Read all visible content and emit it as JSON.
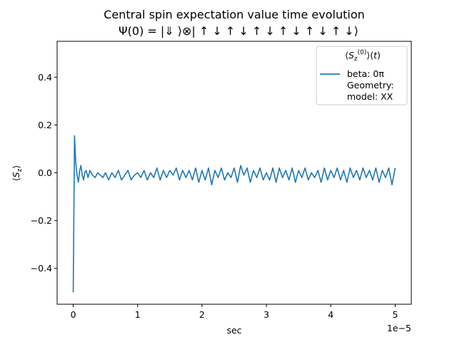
{
  "chart_data": {
    "type": "line",
    "title": "Central spin expectation value time evolution",
    "subtitle": "Ψ(0) = |⇓ ⟩⊗| ↑ ↓ ↑ ↓ ↑ ↓ ↑ ↓ ↑ ↓ ↑ ↓⟩",
    "xlabel": "sec",
    "ylabel": "⟨S_z⟩",
    "x_offset_text": "1e−5",
    "xlim": [
      -2.5e-06,
      5.25e-05
    ],
    "ylim": [
      -0.55,
      0.55
    ],
    "xticks": [
      0,
      1e-05,
      2e-05,
      3e-05,
      4e-05,
      5e-05
    ],
    "xtick_labels": [
      "0",
      "1",
      "2",
      "3",
      "4",
      "5"
    ],
    "yticks": [
      -0.4,
      -0.2,
      0.0,
      0.2,
      0.4
    ],
    "ytick_labels": [
      "−0.4",
      "−0.2",
      "0.0",
      "0.2",
      "0.4"
    ],
    "grid": false,
    "legend": {
      "placement": "upper right",
      "title": "⟨S_z^(0)⟩(t)",
      "entries": [
        "beta: 0π",
        "Geometry:",
        "model: XX"
      ]
    },
    "series": [
      {
        "color": "#1f77b4",
        "x": [
          0,
          2e-07,
          4e-07,
          6e-07,
          8e-07,
          1e-06,
          1.2e-06,
          1.4e-06,
          1.6e-06,
          1.8e-06,
          2e-06,
          2.3e-06,
          2.6e-06,
          3e-06,
          3.4e-06,
          3.8e-06,
          4.2e-06,
          4.6e-06,
          5e-06,
          5.5e-06,
          6e-06,
          6.5e-06,
          7e-06,
          7.5e-06,
          8e-06,
          8.5e-06,
          9e-06,
          9.5e-06,
          1e-05,
          1.05e-05,
          1.1e-05,
          1.15e-05,
          1.2e-05,
          1.25e-05,
          1.3e-05,
          1.35e-05,
          1.4e-05,
          1.45e-05,
          1.5e-05,
          1.55e-05,
          1.6e-05,
          1.65e-05,
          1.7e-05,
          1.75e-05,
          1.8e-05,
          1.85e-05,
          1.9e-05,
          1.95e-05,
          2e-05,
          2.05e-05,
          2.1e-05,
          2.15e-05,
          2.2e-05,
          2.25e-05,
          2.3e-05,
          2.35e-05,
          2.4e-05,
          2.45e-05,
          2.5e-05,
          2.55e-05,
          2.6e-05,
          2.65e-05,
          2.7e-05,
          2.75e-05,
          2.8e-05,
          2.85e-05,
          2.9e-05,
          2.95e-05,
          3e-05,
          3.05e-05,
          3.1e-05,
          3.15e-05,
          3.2e-05,
          3.25e-05,
          3.3e-05,
          3.35e-05,
          3.4e-05,
          3.45e-05,
          3.5e-05,
          3.55e-05,
          3.6e-05,
          3.65e-05,
          3.7e-05,
          3.75e-05,
          3.8e-05,
          3.85e-05,
          3.9e-05,
          3.95e-05,
          4e-05,
          4.05e-05,
          4.1e-05,
          4.15e-05,
          4.2e-05,
          4.25e-05,
          4.3e-05,
          4.35e-05,
          4.4e-05,
          4.45e-05,
          4.5e-05,
          4.55e-05,
          4.6e-05,
          4.65e-05,
          4.7e-05,
          4.75e-05,
          4.8e-05,
          4.85e-05,
          4.9e-05,
          4.95e-05,
          5e-05
        ],
        "y": [
          -0.5,
          0.155,
          0.04,
          -0.01,
          -0.04,
          0.01,
          0.03,
          -0.01,
          -0.03,
          0.0,
          0.01,
          -0.02,
          0.01,
          -0.01,
          -0.02,
          0.0,
          -0.01,
          -0.02,
          0.0,
          -0.03,
          0.0,
          -0.02,
          0.01,
          -0.03,
          -0.01,
          0.01,
          -0.03,
          -0.01,
          0.0,
          -0.02,
          0.01,
          -0.03,
          0.0,
          -0.02,
          0.02,
          -0.03,
          0.01,
          -0.02,
          0.01,
          -0.01,
          0.02,
          -0.03,
          0.01,
          -0.02,
          0.01,
          -0.03,
          0.02,
          -0.04,
          0.01,
          -0.03,
          0.02,
          -0.05,
          0.01,
          -0.02,
          0.02,
          -0.03,
          0.0,
          -0.02,
          0.02,
          -0.04,
          0.03,
          -0.01,
          0.02,
          -0.04,
          0.01,
          -0.02,
          0.02,
          -0.03,
          0.0,
          -0.03,
          0.02,
          -0.04,
          0.02,
          -0.02,
          0.01,
          -0.03,
          0.02,
          -0.04,
          0.01,
          -0.02,
          0.02,
          -0.03,
          0.0,
          -0.02,
          0.01,
          -0.04,
          0.02,
          -0.03,
          0.01,
          -0.02,
          0.02,
          -0.03,
          0.01,
          -0.04,
          0.02,
          -0.02,
          0.01,
          -0.03,
          0.02,
          -0.02,
          0.01,
          -0.03,
          0.02,
          -0.04,
          0.01,
          -0.02,
          0.02,
          -0.05,
          0.02
        ]
      }
    ]
  }
}
